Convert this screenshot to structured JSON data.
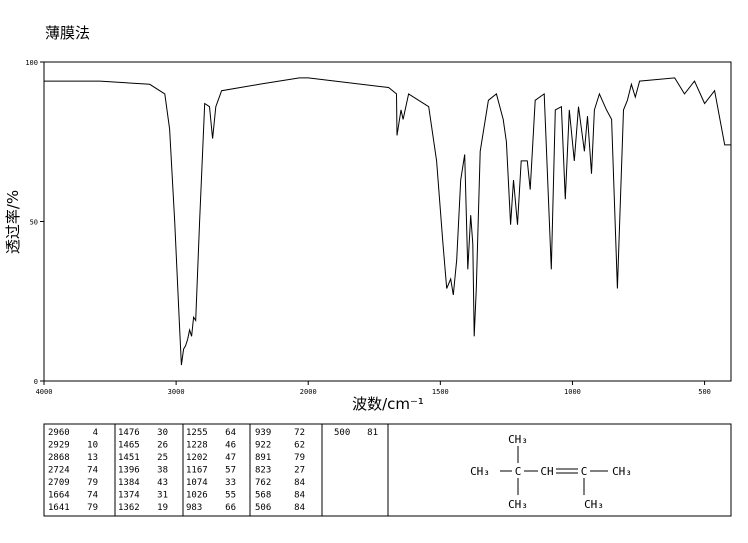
{
  "chart_data": {
    "type": "line",
    "title": "薄膜法",
    "x_label": "波数/cm⁻¹",
    "y_label": "透过率/%",
    "xlim": [
      4000,
      400
    ],
    "ylim": [
      0,
      100
    ],
    "x_scale_break": {
      "at": 2000,
      "factor": 2
    },
    "xticks": [
      4000,
      3000,
      2000,
      1500,
      1000,
      500
    ],
    "yticks": [
      0,
      50,
      100
    ],
    "x": [
      4000,
      3577,
      3200,
      3086,
      3049,
      3011,
      2973,
      2960,
      2943,
      2929,
      2913,
      2898,
      2883,
      2868,
      2852,
      2822,
      2784,
      2747,
      2724,
      2700,
      2656,
      2370,
      2067,
      2000,
      1696,
      1666,
      1664,
      1649,
      1641,
      1620,
      1544,
      1514,
      1491,
      1476,
      1461,
      1451,
      1438,
      1423,
      1408,
      1396,
      1385,
      1377,
      1372,
      1364,
      1349,
      1318,
      1288,
      1262,
      1250,
      1234,
      1223,
      1208,
      1194,
      1171,
      1160,
      1141,
      1107,
      1080,
      1065,
      1042,
      1027,
      1012,
      993,
      977,
      955,
      943,
      928,
      917,
      898,
      871,
      852,
      830,
      807,
      792,
      777,
      762,
      746,
      613,
      576,
      538,
      500,
      462,
      424,
      400
    ],
    "series": [
      {
        "name": "spectrum",
        "color": "#000000",
        "values": [
          94,
          94,
          93,
          90,
          79,
          50,
          16,
          5,
          10,
          11,
          13,
          16,
          14,
          20,
          19,
          50,
          87,
          86,
          76,
          86,
          91,
          93,
          95,
          95,
          92,
          90,
          77,
          85,
          82,
          90,
          86,
          69,
          44,
          29,
          32,
          27,
          38,
          63,
          71,
          35,
          52,
          43,
          14,
          29,
          72,
          88,
          90,
          82,
          75,
          49,
          63,
          49,
          69,
          69,
          60,
          88,
          90,
          35,
          85,
          86,
          57,
          85,
          69,
          86,
          72,
          83,
          65,
          85,
          90,
          85,
          82,
          29,
          85,
          88,
          93,
          89,
          94,
          95,
          90,
          94,
          87,
          91,
          74,
          74
        ]
      }
    ]
  },
  "peak_table": [
    [
      [
        2960,
        4
      ],
      [
        2929,
        10
      ],
      [
        2868,
        13
      ],
      [
        2724,
        74
      ],
      [
        2709,
        79
      ],
      [
        1664,
        74
      ],
      [
        1641,
        79
      ]
    ],
    [
      [
        1476,
        30
      ],
      [
        1465,
        26
      ],
      [
        1451,
        25
      ],
      [
        1396,
        38
      ],
      [
        1384,
        43
      ],
      [
        1374,
        31
      ],
      [
        1362,
        19
      ]
    ],
    [
      [
        1255,
        64
      ],
      [
        1228,
        46
      ],
      [
        1202,
        47
      ],
      [
        1167,
        57
      ],
      [
        1074,
        33
      ],
      [
        1026,
        55
      ],
      [
        983,
        66
      ]
    ],
    [
      [
        939,
        72
      ],
      [
        922,
        62
      ],
      [
        891,
        79
      ],
      [
        823,
        27
      ],
      [
        762,
        84
      ],
      [
        568,
        84
      ],
      [
        506,
        84
      ]
    ],
    [
      [
        500,
        81
      ]
    ]
  ],
  "structure": {
    "atoms": [
      "CH₃",
      "CH₃",
      "C",
      "CH",
      "C",
      "CH₃",
      "CH₃",
      "CH₃"
    ]
  }
}
